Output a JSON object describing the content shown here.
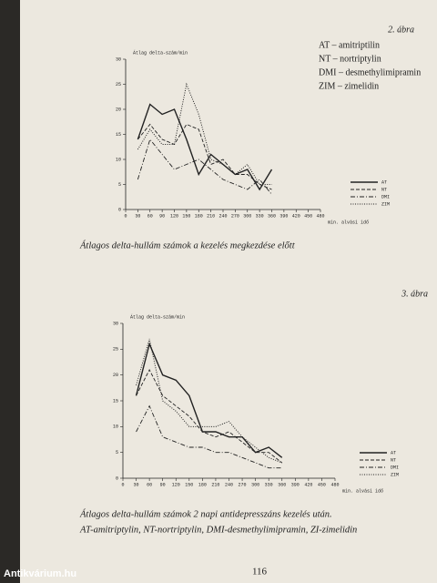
{
  "chart_data": [
    {
      "type": "line",
      "label": "2. ábra",
      "ylabel": "Átlag delta-szám/min",
      "xlabel": "min. alvási idő",
      "notes": [
        "AT – amitriptilin",
        "NT – nortriptylin",
        "DMI – desmethylimipramin",
        "ZIM – zimelidin"
      ],
      "caption": [
        "Átlagos delta-hullám számok a kezelés megkezdése előtt"
      ],
      "x": [
        30,
        60,
        90,
        120,
        150,
        180,
        210,
        240,
        270,
        300,
        330,
        360
      ],
      "series": [
        {
          "name": "AT",
          "color": "#222",
          "style": "solid",
          "values": [
            14,
            21,
            19,
            20,
            14,
            7,
            11,
            9,
            7,
            8,
            4,
            8
          ]
        },
        {
          "name": "NT",
          "color": "#222",
          "style": "dashed",
          "values": [
            14,
            17,
            14,
            13,
            17,
            16,
            9,
            10,
            7,
            7,
            5,
            4
          ]
        },
        {
          "name": "DMI",
          "color": "#222",
          "style": "dashdot",
          "values": [
            6,
            14,
            11,
            8,
            9,
            10,
            8,
            6,
            5,
            4,
            6,
            3
          ]
        },
        {
          "name": "ZIM",
          "color": "#222",
          "style": "dotted",
          "values": [
            12,
            16,
            13,
            13,
            25,
            19,
            10,
            9,
            7,
            9,
            5,
            5
          ]
        }
      ],
      "xlim": [
        0,
        480
      ],
      "xticks": [
        0,
        30,
        60,
        90,
        120,
        150,
        180,
        210,
        240,
        270,
        300,
        330,
        360,
        390,
        420,
        450,
        480
      ],
      "ylim": [
        0,
        30
      ],
      "yticks": [
        0,
        5,
        10,
        15,
        20,
        25,
        30
      ],
      "legend": "lower right"
    },
    {
      "type": "line",
      "label": "3. ábra",
      "ylabel": "Átlag delta-szám/min",
      "xlabel": "min. alvási idő",
      "caption": [
        "Átlagos delta-hullám számok 2 napi antidepresszáns kezelés után.",
        "AT-amitriptylin, NT-nortriptylin, DMI-desmethylimipramin, ZI-zimelidin"
      ],
      "x": [
        30,
        60,
        90,
        120,
        150,
        180,
        210,
        240,
        270,
        300,
        330,
        360
      ],
      "series": [
        {
          "name": "AT",
          "color": "#222",
          "style": "solid",
          "values": [
            16,
            26,
            20,
            19,
            16,
            9,
            9,
            8,
            8,
            5,
            6,
            4
          ]
        },
        {
          "name": "NT",
          "color": "#222",
          "style": "dashed",
          "values": [
            16,
            21,
            16,
            14,
            12,
            9,
            8,
            9,
            7,
            5,
            5,
            3
          ]
        },
        {
          "name": "DMI",
          "color": "#222",
          "style": "dashdot",
          "values": [
            9,
            14,
            8,
            7,
            6,
            6,
            5,
            5,
            4,
            3,
            2,
            2
          ]
        },
        {
          "name": "ZIM",
          "color": "#222",
          "style": "dotted",
          "values": [
            18,
            27,
            15,
            13,
            10,
            10,
            10,
            11,
            8,
            6,
            4,
            3
          ]
        }
      ],
      "xlim": [
        0,
        480
      ],
      "xticks": [
        0,
        30,
        60,
        90,
        120,
        150,
        180,
        210,
        240,
        270,
        300,
        330,
        360,
        390,
        420,
        450,
        480
      ],
      "ylim": [
        0,
        30
      ],
      "yticks": [
        0,
        5,
        10,
        15,
        20,
        25,
        30
      ],
      "legend": "lower right"
    }
  ],
  "page_number": "116",
  "watermark": "Antikvárium.hu"
}
